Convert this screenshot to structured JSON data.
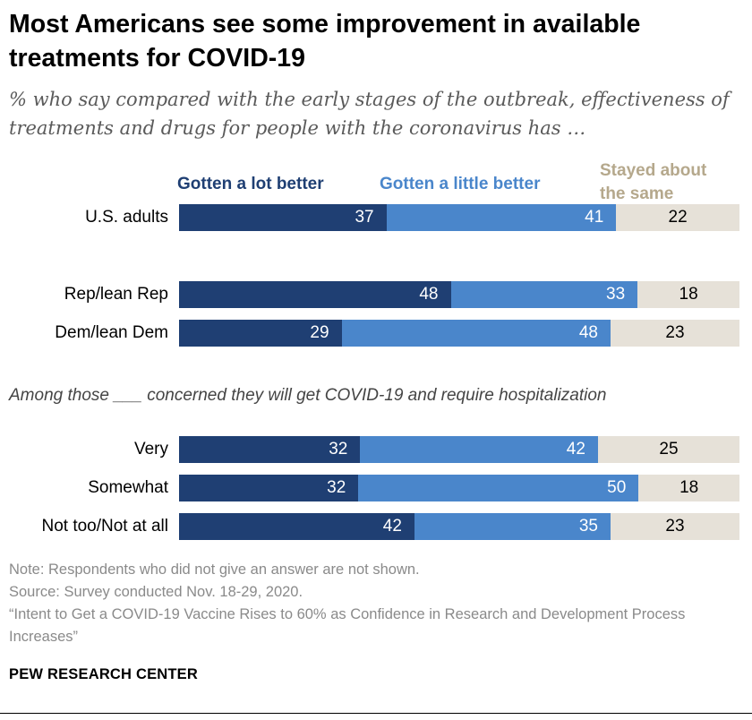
{
  "title": "Most Americans see some improvement in available treatments for COVID-19",
  "subtitle": "% who say compared with the early stages of the outbreak, effectiveness of treatments and drugs for people with the coronavirus has …",
  "legend": {
    "strong": "Gotten a lot better",
    "weak": "Gotten a little better",
    "same": "Stayed about the same"
  },
  "group_note": "Among those ___ concerned they will get COVID-19 and require hospitalization",
  "notes": {
    "note": "Note: Respondents who did not give an answer are not shown.",
    "source": "Source: Survey conducted Nov. 18-29, 2020.",
    "report": "“Intent to Get a COVID-19 Vaccine Rises to 60% as Confidence in Research and Development Process Increases”"
  },
  "logo": "PEW RESEARCH CENTER",
  "colors": {
    "strong": "#1f3f73",
    "weak": "#4a86cb",
    "same": "#e6e1d8"
  },
  "chart_data": {
    "type": "bar",
    "orientation": "horizontal",
    "stacked": true,
    "categories": [
      "U.S. adults",
      "Rep/lean Rep",
      "Dem/lean Dem",
      "Very",
      "Somewhat",
      "Not too/Not at all"
    ],
    "series": [
      {
        "name": "Gotten a lot better",
        "values": [
          37,
          48,
          29,
          32,
          32,
          42
        ]
      },
      {
        "name": "Gotten a little better",
        "values": [
          41,
          33,
          48,
          42,
          50,
          35
        ]
      },
      {
        "name": "Stayed about the same",
        "values": [
          22,
          18,
          23,
          25,
          18,
          23
        ]
      }
    ],
    "xlim": [
      0,
      100
    ],
    "legend": "top",
    "grid": false
  }
}
